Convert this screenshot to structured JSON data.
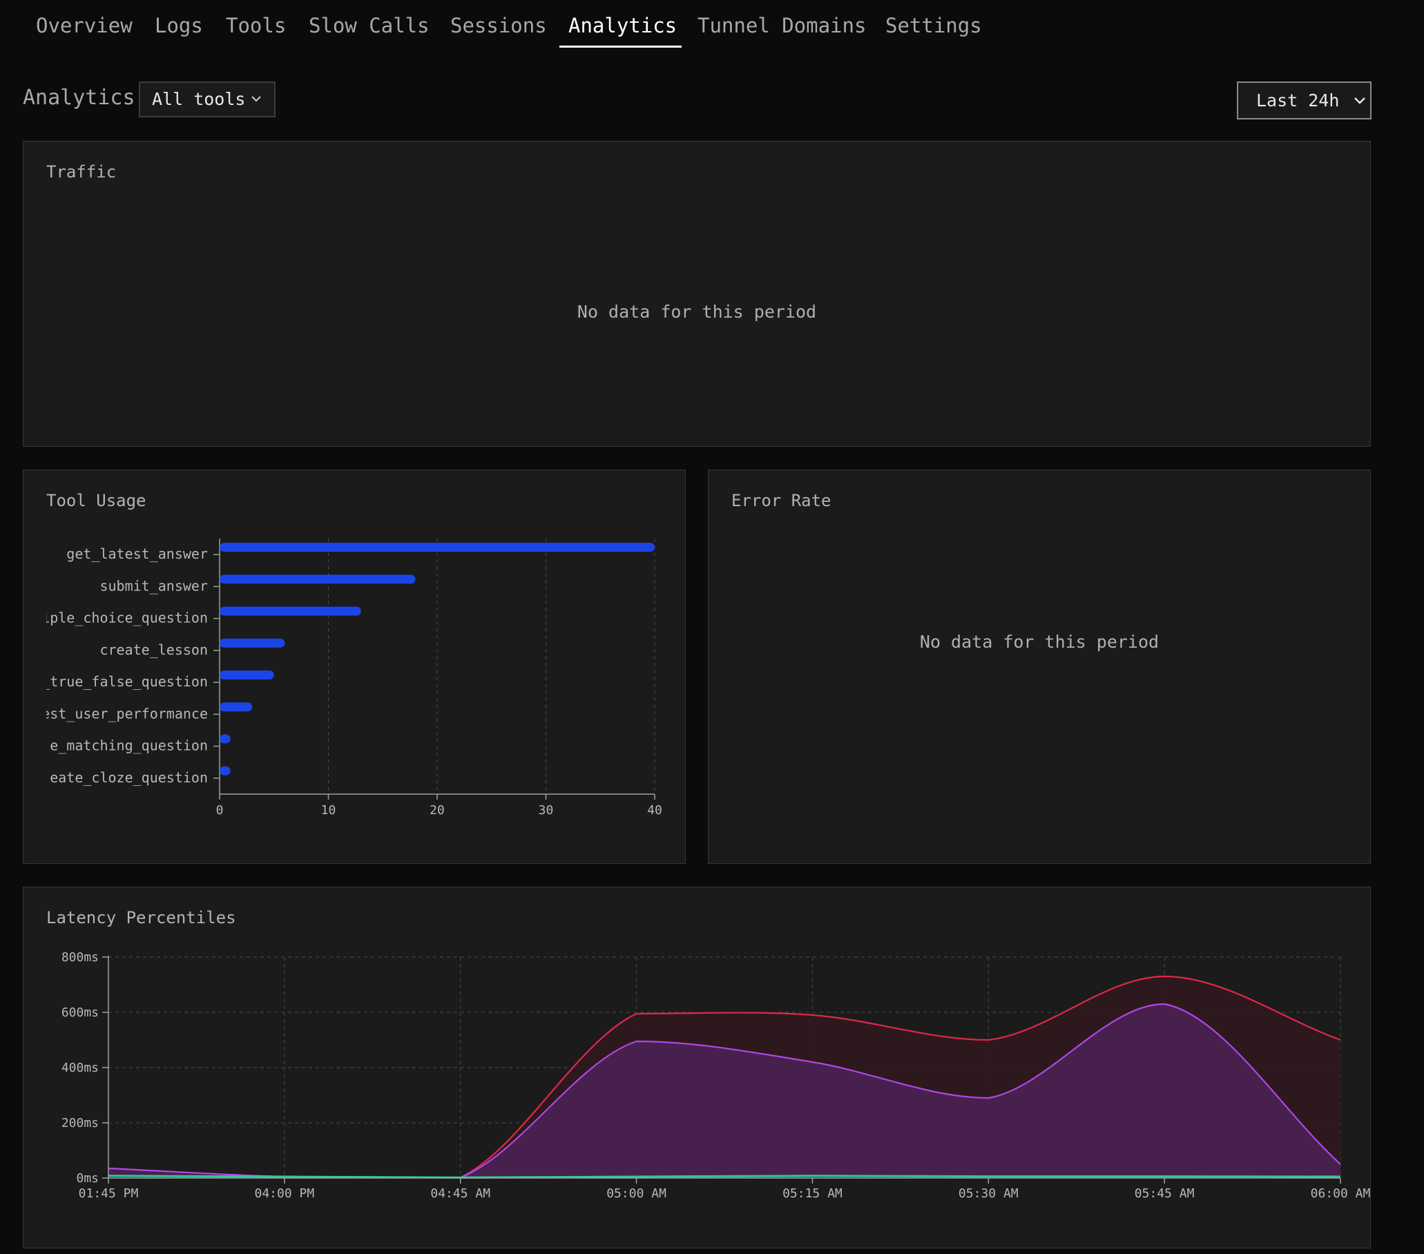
{
  "nav": {
    "tabs": [
      {
        "label": "Overview",
        "active": false
      },
      {
        "label": "Logs",
        "active": false
      },
      {
        "label": "Tools",
        "active": false
      },
      {
        "label": "Slow Calls",
        "active": false
      },
      {
        "label": "Sessions",
        "active": false
      },
      {
        "label": "Analytics",
        "active": true
      },
      {
        "label": "Tunnel Domains",
        "active": false
      },
      {
        "label": "Settings",
        "active": false
      }
    ]
  },
  "toolbar": {
    "title": "Analytics",
    "tool_filter": "All tools",
    "time_range": "Last 24h"
  },
  "traffic": {
    "title": "Traffic",
    "empty_message": "No data for this period"
  },
  "tool_usage": {
    "title": "Tool Usage"
  },
  "error_rate": {
    "title": "Error Rate",
    "empty_message": "No data for this period"
  },
  "latency": {
    "title": "Latency Percentiles"
  },
  "colors": {
    "bar": "#1b45e6",
    "p99": "#e0284a",
    "p95": "#b046e8",
    "p50": "#2cc99e",
    "active_tab": "#ffffff"
  },
  "chart_data": [
    {
      "id": "tool_usage",
      "type": "bar",
      "orientation": "horizontal",
      "categories": [
        "get_latest_answer",
        "submit_answer",
        "iple_choice_question",
        "create_lesson",
        "_true_false_question",
        "est_user_performance",
        "e_matching_question",
        "eate_cloze_question"
      ],
      "values": [
        40,
        18,
        13,
        6,
        5,
        3,
        1,
        1
      ],
      "xlim": [
        0,
        40
      ],
      "xticks": [
        "0",
        "10",
        "20",
        "30",
        "40"
      ],
      "grid": true
    },
    {
      "id": "latency_percentiles",
      "type": "area",
      "x": [
        "01:45 PM",
        "04:00 PM",
        "04:45 AM",
        "05:00 AM",
        "05:15 AM",
        "05:30 AM",
        "05:45 AM",
        "06:00 AM"
      ],
      "series": [
        {
          "values": [
            35,
            5,
            2,
            595,
            590,
            500,
            730,
            500
          ]
        },
        {
          "values": [
            35,
            5,
            2,
            495,
            420,
            290,
            630,
            50
          ]
        },
        {
          "values": [
            8,
            5,
            2,
            5,
            8,
            6,
            6,
            5
          ]
        }
      ],
      "ylim": [
        0,
        800
      ],
      "yticks": [
        "0ms",
        "200ms",
        "400ms",
        "600ms",
        "800ms"
      ],
      "grid": true
    }
  ]
}
